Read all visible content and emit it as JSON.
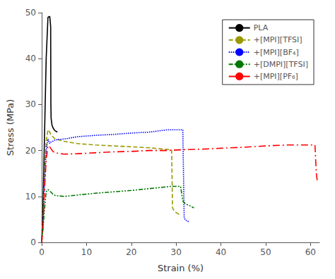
{
  "chart_data": {
    "type": "line",
    "xlabel": "Strain (%)",
    "ylabel": "Stress (MPa)",
    "xlim": [
      0,
      62
    ],
    "ylim": [
      0,
      50
    ],
    "xticks": [
      0,
      10,
      20,
      30,
      40,
      50,
      60
    ],
    "yticks": [
      0,
      10,
      20,
      30,
      40,
      50
    ],
    "grid": false,
    "legend": "upper right",
    "series": [
      {
        "name": "PLA",
        "color": "#000000",
        "line_style": "solid",
        "x": [
          0,
          0.3,
          0.6,
          1.0,
          1.4,
          1.8,
          2.0,
          2.05,
          2.1,
          2.3,
          2.5,
          2.8,
          3.0,
          3.5
        ],
        "values": [
          0,
          8,
          22,
          40,
          49,
          49.2,
          47,
          30,
          27,
          25.5,
          25.0,
          24.5,
          24.3,
          24.0
        ]
      },
      {
        "name": "+[MPI][TFSI]",
        "color": "#999900",
        "line_style": "dashed",
        "x": [
          0,
          0.3,
          0.6,
          1.0,
          1.4,
          1.8,
          2.0,
          2.5,
          3.0,
          5.0,
          8.0,
          12.0,
          16.0,
          20.0,
          24.0,
          27.0,
          28.5,
          29.0,
          29.2,
          29.5,
          30.0,
          30.5,
          31.0
        ],
        "values": [
          0,
          5,
          14,
          22,
          24.5,
          24.0,
          23.5,
          23.0,
          22.5,
          22.0,
          21.5,
          21.2,
          21.0,
          20.8,
          20.6,
          20.3,
          20.2,
          20.1,
          7.5,
          7.0,
          6.5,
          6.2,
          5.8
        ]
      },
      {
        "name": "+[MPI][BF₄]",
        "color": "#0000ff",
        "line_style": "dotted",
        "x": [
          0,
          0.3,
          0.6,
          1.0,
          1.4,
          1.8,
          2.0,
          2.5,
          3.0,
          5.0,
          8.0,
          12.0,
          16.0,
          20.0,
          24.0,
          28.0,
          30.0,
          31.5,
          31.8,
          32.0,
          32.2,
          32.5,
          33.0
        ],
        "values": [
          0,
          4,
          12,
          20,
          22.5,
          21.5,
          21.8,
          22.0,
          22.3,
          22.5,
          23.0,
          23.3,
          23.5,
          23.8,
          24.0,
          24.5,
          24.5,
          24.5,
          5.5,
          5.0,
          4.8,
          4.6,
          4.5
        ]
      },
      {
        "name": "+[DMPI][TFSI]",
        "color": "#007700",
        "line_style": "dashdotdot",
        "x": [
          0,
          0.3,
          0.6,
          1.0,
          1.4,
          1.8,
          2.0,
          2.5,
          3.0,
          5.0,
          8.0,
          12.0,
          16.0,
          20.0,
          24.0,
          27.0,
          29.0,
          30.0,
          31.0,
          31.5,
          32.0,
          32.5,
          33.0,
          34.0
        ],
        "values": [
          0,
          3,
          7,
          11,
          11.5,
          11.2,
          11.0,
          10.5,
          10.2,
          10.0,
          10.3,
          10.7,
          11.0,
          11.3,
          11.7,
          12.0,
          12.2,
          12.2,
          12.2,
          9.0,
          8.5,
          8.2,
          8.0,
          7.5
        ]
      },
      {
        "name": "+[MPI][PF₆]",
        "color": "#ff0000",
        "line_style": "dashdot",
        "x": [
          0,
          0.3,
          0.6,
          1.0,
          1.4,
          1.8,
          2.0,
          2.5,
          3.0,
          5.0,
          8.0,
          12.0,
          16.0,
          20.0,
          24.0,
          28.0,
          32.0,
          36.0,
          40.0,
          45.0,
          50.0,
          55.0,
          58.0,
          60.0,
          61.0,
          61.3,
          61.5
        ],
        "values": [
          0,
          4,
          11,
          18,
          21,
          20.8,
          20.5,
          19.8,
          19.5,
          19.2,
          19.3,
          19.5,
          19.7,
          19.8,
          20.0,
          20.0,
          20.2,
          20.3,
          20.5,
          20.7,
          21.0,
          21.2,
          21.2,
          21.2,
          21.2,
          15.0,
          13.5
        ]
      }
    ]
  }
}
